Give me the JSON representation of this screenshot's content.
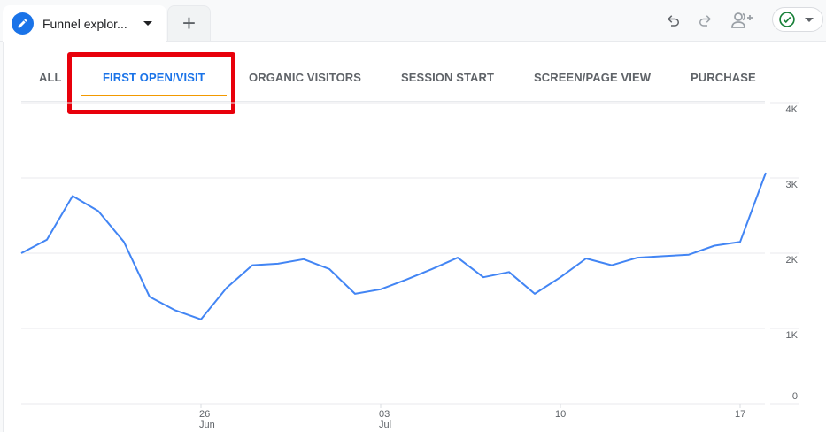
{
  "topbar": {
    "tab_title": "Funnel explor...",
    "tab_icon": "pencil-icon",
    "add_tab_label": "+",
    "tools": [
      {
        "name": "undo-icon"
      },
      {
        "name": "redo-icon"
      },
      {
        "name": "share-users-icon"
      }
    ],
    "status": {
      "icon": "check-circle-icon",
      "color": "#188038"
    }
  },
  "tabs": [
    {
      "label": "ALL",
      "selected": false
    },
    {
      "label": "FIRST OPEN/VISIT",
      "selected": true
    },
    {
      "label": "ORGANIC VISITORS",
      "selected": false
    },
    {
      "label": "SESSION START",
      "selected": false
    },
    {
      "label": "SCREEN/PAGE VIEW",
      "selected": false
    },
    {
      "label": "PURCHASE",
      "selected": false
    }
  ],
  "colors": {
    "accent": "#1a73e8",
    "line": "#4285f4",
    "tab_underline": "#f29900",
    "highlight_box": "#e8000b"
  },
  "chart_data": {
    "type": "line",
    "title": "",
    "xlabel": "",
    "ylabel": "",
    "ylim": [
      0,
      4000
    ],
    "yticks": [
      "0",
      "1K",
      "2K",
      "3K",
      "4K"
    ],
    "xtick_labels": [
      {
        "day": "26",
        "month": "Jun"
      },
      {
        "day": "03",
        "month": "Jul"
      },
      {
        "day": "10",
        "month": ""
      },
      {
        "day": "17",
        "month": ""
      }
    ],
    "grid": true,
    "x": [
      "19 Jun",
      "20 Jun",
      "21 Jun",
      "22 Jun",
      "23 Jun",
      "24 Jun",
      "25 Jun",
      "26 Jun",
      "27 Jun",
      "28 Jun",
      "29 Jun",
      "30 Jun",
      "01 Jul",
      "02 Jul",
      "03 Jul",
      "04 Jul",
      "05 Jul",
      "06 Jul",
      "07 Jul",
      "08 Jul",
      "09 Jul",
      "10 Jul",
      "11 Jul",
      "12 Jul",
      "13 Jul",
      "14 Jul",
      "15 Jul",
      "16 Jul",
      "17 Jul",
      "18 Jul"
    ],
    "series": [
      {
        "name": "First open/visit",
        "values": [
          2000,
          2180,
          2760,
          2560,
          2150,
          1420,
          1240,
          1120,
          1540,
          1840,
          1860,
          1920,
          1790,
          1460,
          1520,
          1650,
          1790,
          1940,
          1680,
          1750,
          1460,
          1680,
          1930,
          1840,
          1940,
          1960,
          1980,
          2100,
          2150,
          3070
        ]
      }
    ]
  }
}
